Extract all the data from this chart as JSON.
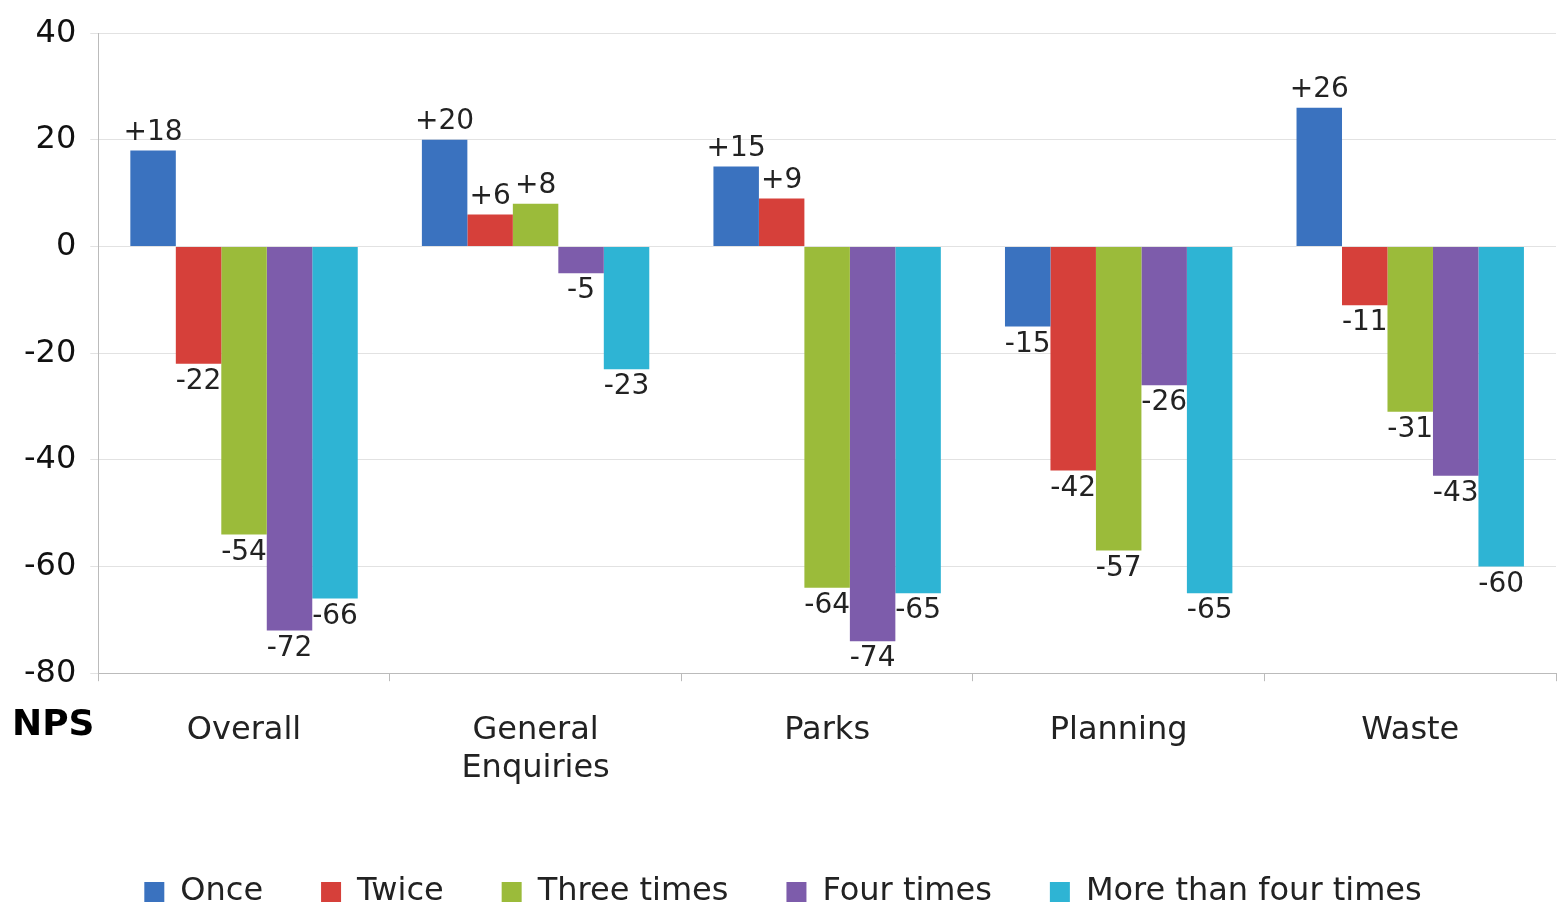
{
  "chart_data": {
    "type": "bar",
    "ylabel": "NPS",
    "categories": [
      "Overall",
      "General Enquiries",
      "Parks",
      "Planning",
      "Waste"
    ],
    "series": [
      {
        "name": "Once",
        "color": "#3a72bf",
        "values": [
          18,
          20,
          15,
          -15,
          26
        ],
        "value_labels": [
          "+18",
          "+20",
          "+15",
          "-15",
          "+26"
        ]
      },
      {
        "name": "Twice",
        "color": "#d6403a",
        "values": [
          -22,
          6,
          9,
          -42,
          -11
        ],
        "value_labels": [
          "-22",
          "+6",
          "+9",
          "-42",
          "-11"
        ]
      },
      {
        "name": "Three times",
        "color": "#9bbb3a",
        "values": [
          -54,
          8,
          -64,
          -57,
          -31
        ],
        "value_labels": [
          "-54",
          "+8",
          "-64",
          "-57",
          "-31"
        ]
      },
      {
        "name": "Four times",
        "color": "#7d5cab",
        "values": [
          -72,
          -5,
          -74,
          -26,
          -43
        ],
        "value_labels": [
          "-72",
          "-5",
          "-74",
          "-26",
          "-43"
        ]
      },
      {
        "name": "More than four times",
        "color": "#2eb4d4",
        "values": [
          -66,
          -23,
          -65,
          -65,
          -60
        ],
        "value_labels": [
          "-66",
          "-23",
          "-65",
          "-65",
          "-60"
        ]
      }
    ],
    "ylim": [
      -80,
      40
    ],
    "yticks": [
      -80,
      -60,
      -40,
      -20,
      0,
      20,
      40
    ],
    "grid": "y",
    "legend": "bottom"
  }
}
